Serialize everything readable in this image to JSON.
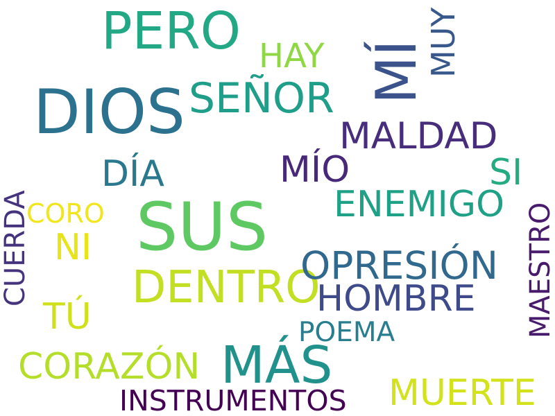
{
  "words": [
    {
      "text": "DIOS",
      "color": "#2c728e"
    },
    {
      "text": "SUS",
      "color": "#5ec962"
    },
    {
      "text": "PERO",
      "color": "#22a884"
    },
    {
      "text": "MÁS",
      "color": "#21918c"
    },
    {
      "text": "MÍ",
      "color": "#3b528b"
    },
    {
      "text": "SEÑOR",
      "color": "#1f9e89"
    },
    {
      "text": "DENTRO",
      "color": "#c2df23"
    },
    {
      "text": "OPRESIÓN",
      "color": "#31688e"
    },
    {
      "text": "HOMBRE",
      "color": "#3e4a89"
    },
    {
      "text": "MALDAD",
      "color": "#472d7b"
    },
    {
      "text": "ENEMIGO",
      "color": "#1fa187"
    },
    {
      "text": "CORAZÓN",
      "color": "#b5de2b"
    },
    {
      "text": "MUERTE",
      "color": "#d2e21b"
    },
    {
      "text": "INSTRUMENTOS",
      "color": "#440154"
    },
    {
      "text": "DÍA",
      "color": "#2a788e"
    },
    {
      "text": "MÍO",
      "color": "#482878"
    },
    {
      "text": "SI",
      "color": "#25ab82"
    },
    {
      "text": "HAY",
      "color": "#8fd744"
    },
    {
      "text": "MUY",
      "color": "#38588c"
    },
    {
      "text": "TÚ",
      "color": "#d0e11c"
    },
    {
      "text": "NI",
      "color": "#e7e419"
    },
    {
      "text": "CORO",
      "color": "#f1e51d"
    },
    {
      "text": "POEMA",
      "color": "#287d8e"
    },
    {
      "text": "CUERDA",
      "color": "#46337e"
    },
    {
      "text": "MAESTRO",
      "color": "#481b6d"
    }
  ]
}
